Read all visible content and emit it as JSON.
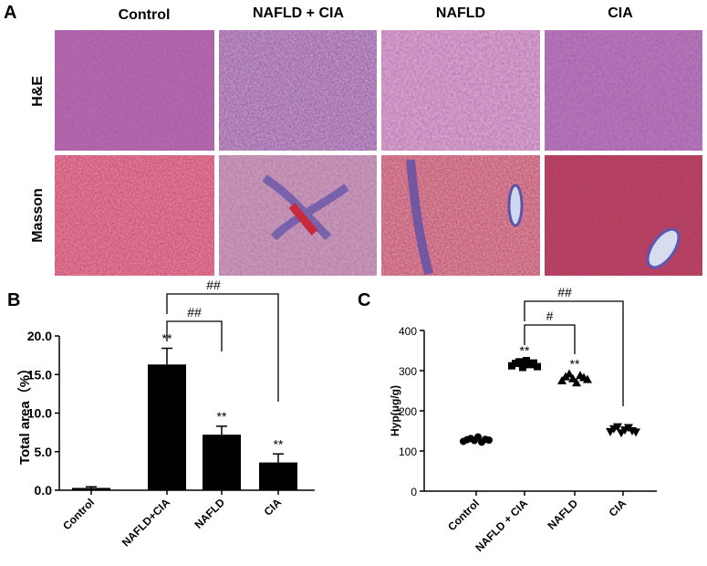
{
  "panel_a": {
    "label": "A",
    "columns": [
      "Control",
      "NAFLD + CIA",
      "NAFLD",
      "CIA"
    ],
    "rows": [
      "H&E",
      "Masson"
    ]
  },
  "chart_data": [
    {
      "type": "bar",
      "panel_label": "B",
      "ylabel": "Total area（%）",
      "categories": [
        "Control",
        "NAFLD+CIA",
        "NAFLD",
        "CIA"
      ],
      "values": [
        0.3,
        16.3,
        7.2,
        3.6
      ],
      "errors": [
        0.15,
        2.1,
        1.1,
        1.1
      ],
      "color": "#000000",
      "sig_labels": [
        null,
        "**",
        "**",
        "**"
      ],
      "comparisons": [
        {
          "label": "##"
        },
        {
          "label": "##"
        }
      ],
      "ylim": [
        0,
        20
      ],
      "yticks": [
        {
          "value": 0,
          "label": "0.0"
        },
        {
          "value": 5,
          "label": "5.0"
        },
        {
          "value": 10,
          "label": "10.0"
        },
        {
          "value": 15,
          "label": "15.0"
        },
        {
          "value": 20,
          "label": "20.0"
        }
      ]
    },
    {
      "type": "dotplot",
      "panel_label": "C",
      "ylabel": "Hyp(μg/g)",
      "categories": [
        "Control",
        "NAFLD + CIA",
        "NAFLD",
        "CIA"
      ],
      "values": [
        [
          124,
          128,
          131,
          126,
          135,
          122,
          129,
          127
        ],
        [
          312,
          318,
          322,
          308,
          325,
          315,
          319,
          310
        ],
        [
          275,
          285,
          292,
          280,
          270,
          288,
          283,
          278
        ],
        [
          148,
          155,
          160,
          145,
          152,
          158,
          150,
          147
        ]
      ],
      "color": "#000000",
      "sig_labels": [
        null,
        "**",
        "**",
        null
      ],
      "comparisons": [
        {
          "label": "#"
        },
        {
          "label": "##"
        }
      ],
      "ylim": [
        0,
        400
      ],
      "yticks": [
        0,
        100,
        200,
        300,
        400
      ]
    }
  ]
}
